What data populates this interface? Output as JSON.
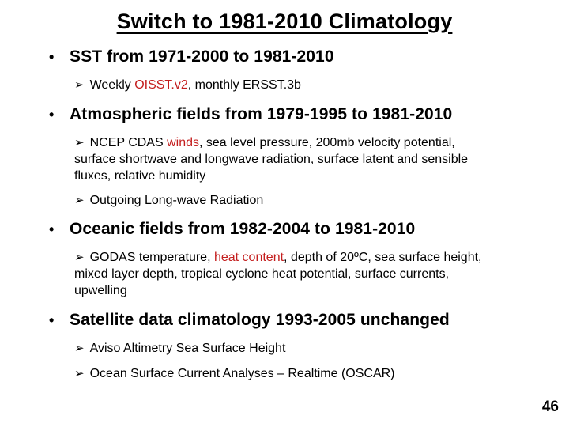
{
  "slide": {
    "title": "Switch to 1981-2010 Climatology",
    "page_number": "46",
    "icons": {
      "bullet": "•",
      "arrow": "➢"
    },
    "colors": {
      "accent_red": "#c41e1e",
      "text": "#000000",
      "background": "#ffffff"
    },
    "bullets": [
      {
        "heading": "SST from 1971-2000 to 1981-2010",
        "subs": [
          {
            "segments": [
              {
                "text": "Weekly "
              },
              {
                "text": "OISST.v2"
              },
              {
                "text": ", monthly ERSST.3b"
              }
            ]
          }
        ]
      },
      {
        "heading": "Atmospheric fields from 1979-1995 to 1981-2010",
        "subs": [
          {
            "segments": [
              {
                "text": "NCEP CDAS "
              },
              {
                "text": "winds"
              },
              {
                "text": ", sea level pressure, 200mb velocity potential, surface shortwave and longwave radiation, surface latent and sensible fluxes, relative humidity"
              }
            ]
          },
          {
            "segments": [
              {
                "text": "Outgoing Long-wave Radiation"
              }
            ]
          }
        ]
      },
      {
        "heading": "Oceanic fields from 1982-2004 to 1981-2010",
        "subs": [
          {
            "segments": [
              {
                "text": "GODAS temperature, "
              },
              {
                "text": "heat content"
              },
              {
                "text": ", depth of 20ºC, sea surface height, mixed layer depth, tropical cyclone heat potential, surface currents, upwelling"
              }
            ]
          }
        ]
      },
      {
        "heading": "Satellite data climatology 1993-2005 unchanged",
        "subs": [
          {
            "segments": [
              {
                "text": "Aviso Altimetry Sea Surface Height"
              }
            ]
          },
          {
            "segments": [
              {
                "text": "Ocean Surface Current Analyses – Realtime (OSCAR)"
              }
            ]
          }
        ]
      }
    ]
  }
}
